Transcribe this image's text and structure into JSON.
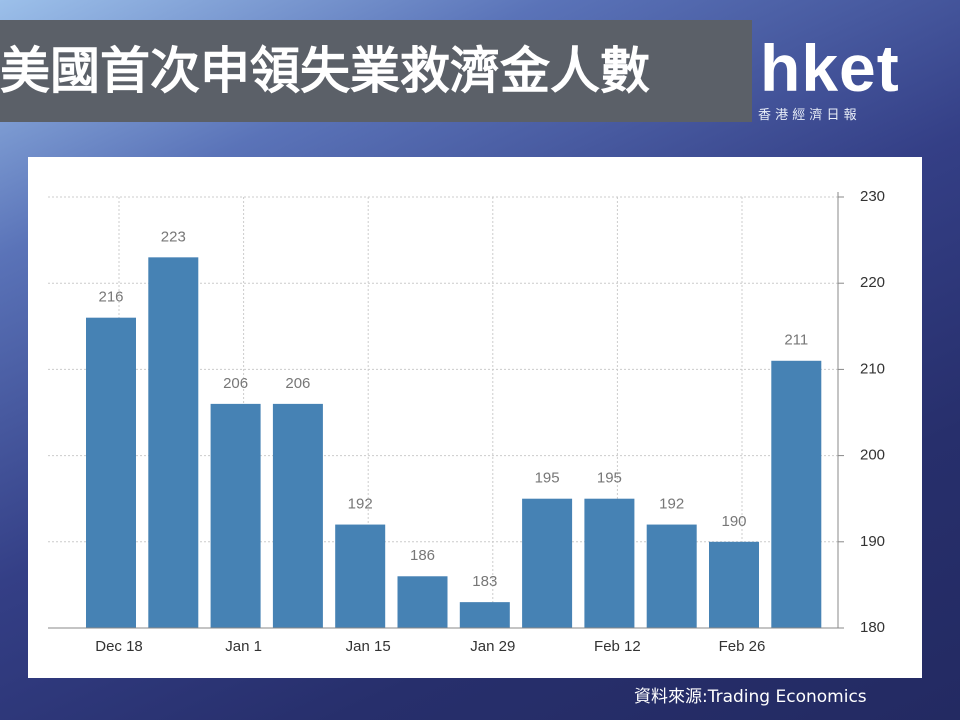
{
  "chart_data": {
    "type": "bar",
    "title": "美國首次申領失業救濟金人數",
    "categories": [
      "Dec 18",
      null,
      "Jan 1",
      null,
      "Jan 15",
      null,
      "Jan 29",
      null,
      "Feb 12",
      null,
      "Feb 26",
      null
    ],
    "values": [
      216,
      223,
      206,
      206,
      192,
      186,
      183,
      195,
      195,
      192,
      190,
      211
    ],
    "color": "#4682b4",
    "ylim": [
      180,
      230
    ],
    "yticks": [
      180,
      190,
      200,
      210,
      220,
      230
    ],
    "y_axis_side": "right",
    "grid": true,
    "source": "資料來源:Trading Economics"
  },
  "branding": {
    "name": "hket",
    "tagline": "香 港 經 濟 日 報"
  }
}
